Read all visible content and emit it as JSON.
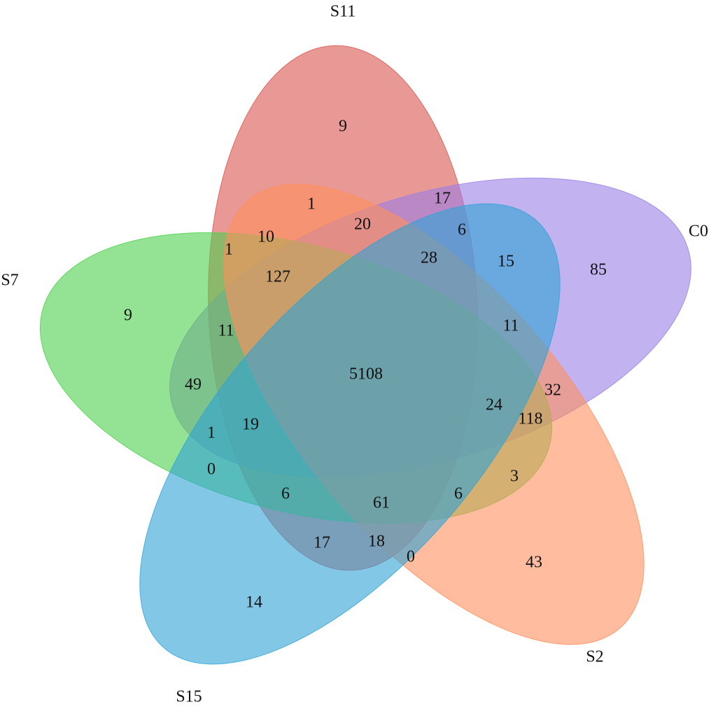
{
  "sets": [
    {
      "name": "S11",
      "color": "#d9534f"
    },
    {
      "name": "C0",
      "color": "#9b7fe6"
    },
    {
      "name": "S7",
      "color": "#4ccf4c"
    },
    {
      "name": "S2",
      "color": "#ff8f5e"
    },
    {
      "name": "S15",
      "color": "#2fa3d6"
    }
  ],
  "regions": [
    9,
    1,
    17,
    20,
    10,
    6,
    1,
    28,
    15,
    85,
    127,
    9,
    11,
    11,
    5108,
    49,
    32,
    24,
    118,
    19,
    1,
    0,
    3,
    6,
    61,
    6,
    17,
    18,
    0,
    43,
    14
  ]
}
